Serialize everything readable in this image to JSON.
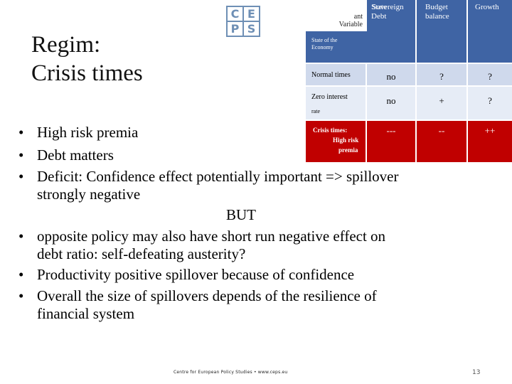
{
  "logo": {
    "letters": [
      "C",
      "E",
      "P",
      "S"
    ]
  },
  "slide": {
    "title_line1": "Regim:",
    "title_line2": "Crisis times"
  },
  "table": {
    "header": {
      "variable_line1": "ant",
      "variable_line2": "Variable",
      "sovereign_overlap": "State",
      "sovereign_line1": "Sovereign",
      "sovereign_line2": "Debt",
      "budget_line1": "Budget",
      "budget_line2": "balance",
      "growth": "Growth"
    },
    "state_label_line1": "State of the",
    "state_label_line2": "Economy",
    "rows": [
      {
        "label": "Normal times",
        "label2": "",
        "debt": "no",
        "budget": "?",
        "growth": "?"
      },
      {
        "label": "Zero interest",
        "label2": "rate",
        "debt": "no",
        "budget": "+",
        "growth": "?"
      }
    ],
    "crisis_row": {
      "label_line1": "Crisis times:",
      "label_line2": "High risk",
      "label_line3": "premia",
      "debt": "---",
      "budget": "--",
      "growth": "++"
    }
  },
  "bullets": [
    {
      "dot": "•",
      "text": "High risk premia"
    },
    {
      "dot": "•",
      "text": "Debt matters"
    },
    {
      "dot": "•",
      "text": "Deficit: Confidence effect potentially important => spillover"
    },
    {
      "dot": "",
      "text": "strongly negative"
    },
    {
      "dot": "",
      "text": "BUT"
    },
    {
      "dot": "•",
      "text": "opposite policy may also have short run negative effect on"
    },
    {
      "dot": "",
      "text": "debt ratio: self-defeating austerity?"
    },
    {
      "dot": "•",
      "text": "Productivity positive spillover because of  confidence"
    },
    {
      "dot": "•",
      "text": "Overall the size of spillovers depends of the resilience of"
    },
    {
      "dot": "",
      "text": "financial system"
    }
  ],
  "footer": "Centre for European Policy Studies  •  www.ceps.eu",
  "page_number": "13",
  "colors": {
    "header_blue": "#3f64a4",
    "row_lightblue": "#cfd9ec",
    "row_lightblue2": "#e6ecf6",
    "crisis_red": "#c00000",
    "logo_blue": "#6e8fb5"
  }
}
